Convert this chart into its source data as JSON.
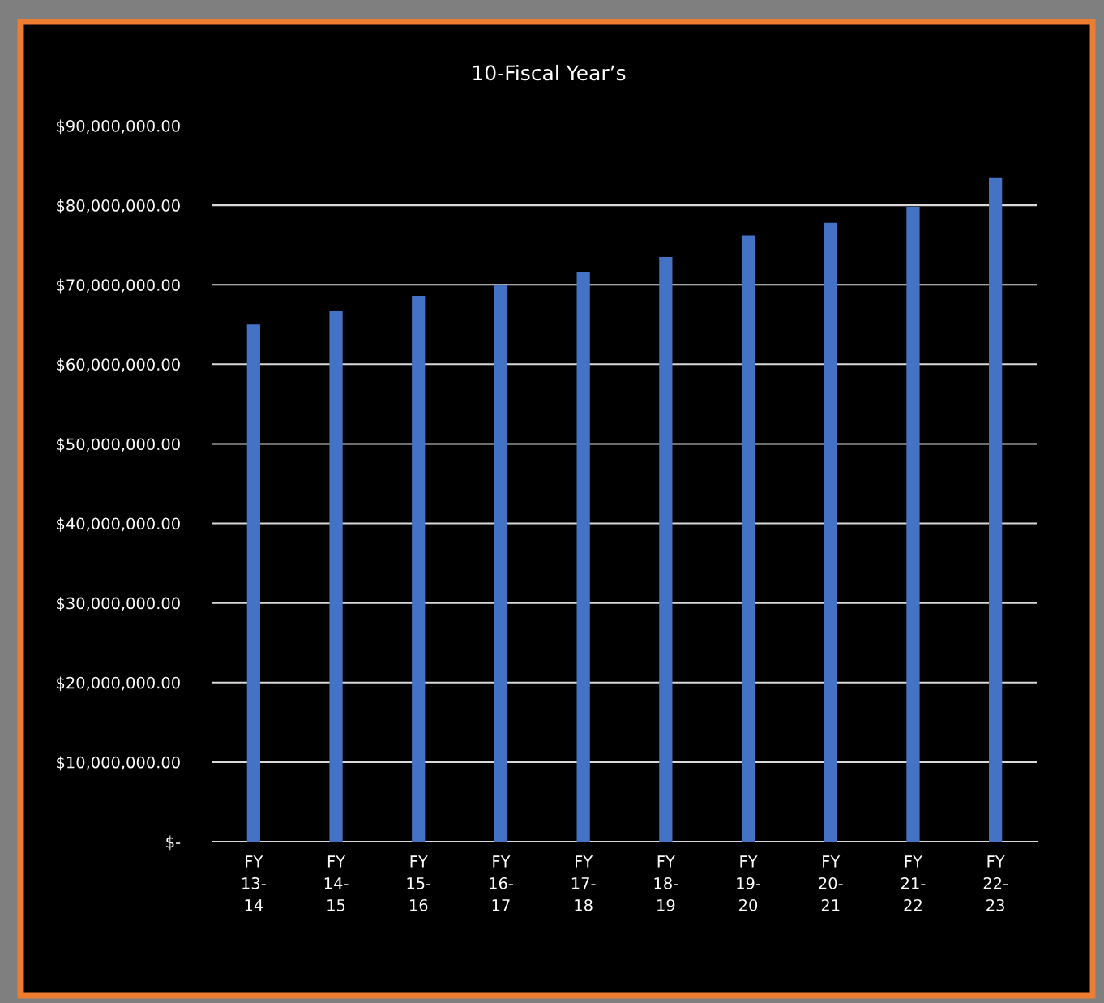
{
  "chart_data": {
    "type": "bar",
    "title": "10-Fiscal Year’s",
    "categories": [
      "FY\n13-\n14",
      "FY\n14-\n15",
      "FY\n15-\n16",
      "FY\n16-\n17",
      "FY\n17-\n18",
      "FY\n18-\n19",
      "FY\n19-\n20",
      "FY\n20-\n21",
      "FY\n21-\n22",
      "FY\n22-\n23"
    ],
    "values": [
      65000000,
      66700000,
      68600000,
      70000000,
      71600000,
      73500000,
      76200000,
      77800000,
      79800000,
      83500000
    ],
    "color": "#4472c4",
    "ylim": [
      0,
      90000000
    ],
    "yticks": [
      {
        "value": 0,
        "label": "$-"
      },
      {
        "value": 10000000,
        "label": "$10,000,000.00"
      },
      {
        "value": 20000000,
        "label": "$20,000,000.00"
      },
      {
        "value": 30000000,
        "label": "$30,000,000.00"
      },
      {
        "value": 40000000,
        "label": "$40,000,000.00"
      },
      {
        "value": 50000000,
        "label": "$50,000,000.00"
      },
      {
        "value": 60000000,
        "label": "$60,000,000.00"
      },
      {
        "value": 70000000,
        "label": "$70,000,000.00"
      },
      {
        "value": 80000000,
        "label": "$80,000,000.00"
      },
      {
        "value": 90000000,
        "label": "$90,000,000.00"
      }
    ],
    "grid": "y",
    "legend": false
  }
}
